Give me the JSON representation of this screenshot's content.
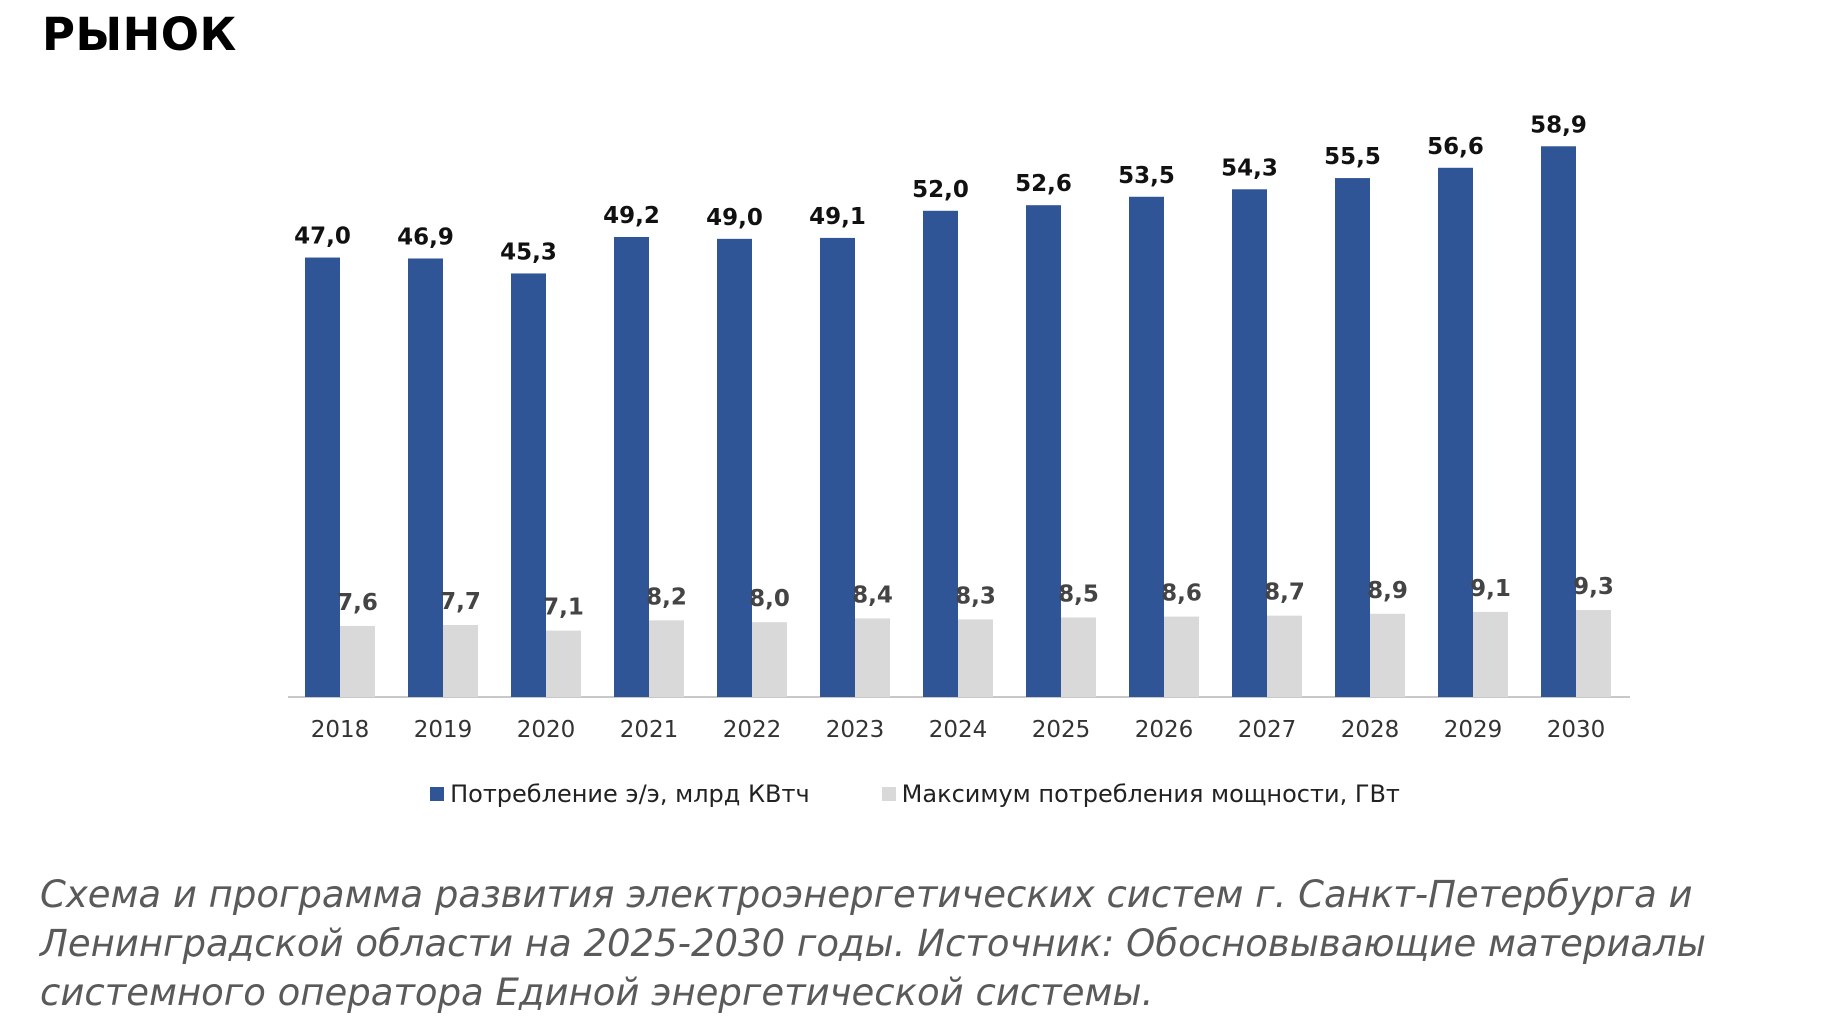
{
  "page": {
    "title": "РЫНОК",
    "caption": "Схема и программа развития электроэнергетических систем г. Санкт-Петербурга и Ленинградской области на 2025-2030 годы. Источник: Обосновывающие материалы системного оператора Единой энергетической системы."
  },
  "chart_data": {
    "type": "bar",
    "title": "",
    "xlabel": "",
    "ylabel": "",
    "categories": [
      "2018",
      "2019",
      "2020",
      "2021",
      "2022",
      "2023",
      "2024",
      "2025",
      "2026",
      "2027",
      "2028",
      "2029",
      "2030"
    ],
    "series": [
      {
        "name": "Потребление э/э, млрд КВтч",
        "color": "#2f5597",
        "values": [
          47.0,
          46.9,
          45.3,
          49.2,
          49.0,
          49.1,
          52.0,
          52.6,
          53.5,
          54.3,
          55.5,
          56.6,
          58.9
        ],
        "labels": [
          "47,0",
          "46,9",
          "45,3",
          "49,2",
          "49,0",
          "49,1",
          "52,0",
          "52,6",
          "53,5",
          "54,3",
          "55,5",
          "56,6",
          "58,9"
        ]
      },
      {
        "name": "Максимум потребления мощности, ГВт",
        "color": "#d9d9d9",
        "values": [
          7.6,
          7.7,
          7.1,
          8.2,
          8.0,
          8.4,
          8.3,
          8.5,
          8.6,
          8.7,
          8.9,
          9.1,
          9.3
        ],
        "labels": [
          "7,6",
          "7,7",
          "7,1",
          "8,2",
          "8,0",
          "8,4",
          "8,3",
          "8,5",
          "8,6",
          "8,7",
          "8,9",
          "9,1",
          "9,3"
        ]
      }
    ],
    "ylim": [
      0,
      60
    ],
    "grid": false,
    "legend_position": "bottom"
  }
}
